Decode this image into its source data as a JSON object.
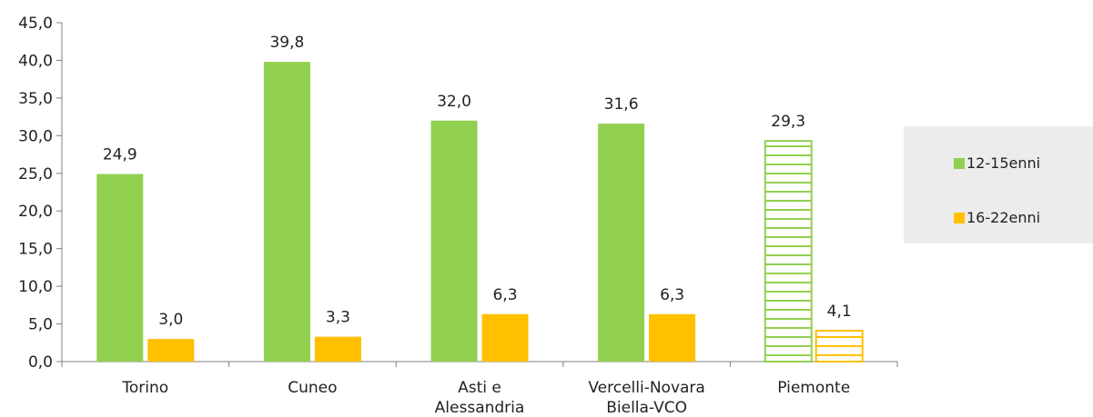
{
  "colors": {
    "series1": "#92d050",
    "series2": "#ffc000",
    "axis": "#808080"
  },
  "legend": {
    "items": [
      {
        "label": "12-15enni"
      },
      {
        "label": "16-22enni"
      }
    ]
  },
  "chart_data": {
    "type": "bar",
    "categories": [
      [
        "Torino"
      ],
      [
        "Cuneo"
      ],
      [
        "Asti e",
        "Alessandria"
      ],
      [
        "Vercelli-Novara",
        "Biella-VCO"
      ],
      [
        "Piemonte"
      ]
    ],
    "series": [
      {
        "name": "12-15enni",
        "values": [
          24.9,
          39.8,
          32.0,
          31.6,
          29.3
        ]
      },
      {
        "name": "16-22enni",
        "values": [
          3.0,
          3.3,
          6.3,
          6.3,
          4.1
        ]
      }
    ],
    "data_labels": [
      [
        "24,9",
        "39,8",
        "32,0",
        "31,6",
        "29,3"
      ],
      [
        "3,0",
        "3,3",
        "6,3",
        "6,3",
        "4,1"
      ]
    ],
    "ylim": [
      0,
      45
    ],
    "y_ticks": [
      "0,0",
      "5,0",
      "10,0",
      "15,0",
      "20,0",
      "25,0",
      "30,0",
      "35,0",
      "40,0",
      "45,0"
    ],
    "hatched_category_index": 4,
    "grid": false,
    "legend_position": "right"
  }
}
